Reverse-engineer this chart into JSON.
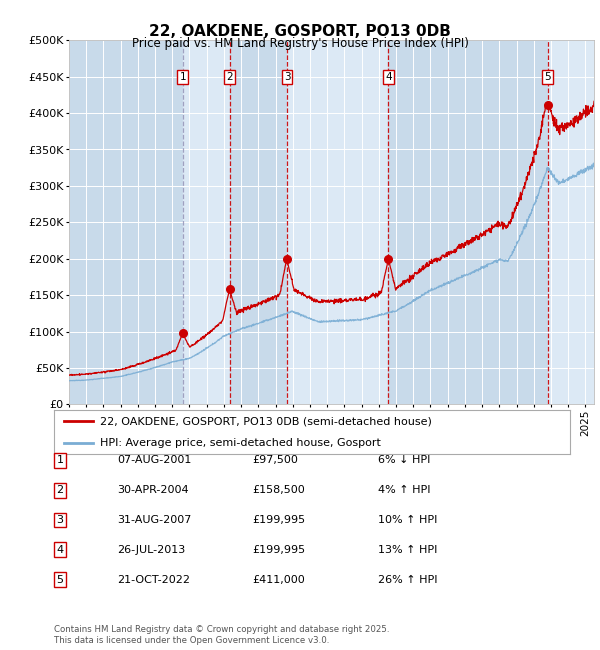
{
  "title": "22, OAKDENE, GOSPORT, PO13 0DB",
  "subtitle": "Price paid vs. HM Land Registry's House Price Index (HPI)",
  "footer": "Contains HM Land Registry data © Crown copyright and database right 2025.\nThis data is licensed under the Open Government Licence v3.0.",
  "legend_house": "22, OAKDENE, GOSPORT, PO13 0DB (semi-detached house)",
  "legend_hpi": "HPI: Average price, semi-detached house, Gosport",
  "transactions_display": [
    [
      1,
      "07-AUG-2001",
      "£97,500",
      "6% ↓ HPI"
    ],
    [
      2,
      "30-APR-2004",
      "£158,500",
      "4% ↑ HPI"
    ],
    [
      3,
      "31-AUG-2007",
      "£199,995",
      "10% ↑ HPI"
    ],
    [
      4,
      "26-JUL-2013",
      "£199,995",
      "13% ↑ HPI"
    ],
    [
      5,
      "21-OCT-2022",
      "£411,000",
      "26% ↑ HPI"
    ]
  ],
  "trans_years": [
    2001.604,
    2004.33,
    2007.664,
    2013.56,
    2022.804
  ],
  "trans_prices": [
    97500,
    158500,
    199995,
    199995,
    411000
  ],
  "ylim": [
    0,
    500000
  ],
  "yticks": [
    0,
    50000,
    100000,
    150000,
    200000,
    250000,
    300000,
    350000,
    400000,
    450000,
    500000
  ],
  "ytick_labels": [
    "£0",
    "£50K",
    "£100K",
    "£150K",
    "£200K",
    "£250K",
    "£300K",
    "£350K",
    "£400K",
    "£450K",
    "£500K"
  ],
  "xlim_start": 1995.0,
  "xlim_end": 2025.5,
  "background_color": "#dce9f5",
  "line_color_house": "#cc0000",
  "line_color_hpi": "#7aadd4",
  "vline_color_red": "#cc0000",
  "vline_color_gray": "#9999bb",
  "marker_color": "#cc0000",
  "box_color": "#cc0000",
  "shade_dark": "#c8daea",
  "shade_light": "#dce9f5",
  "grid_color": "#ffffff"
}
